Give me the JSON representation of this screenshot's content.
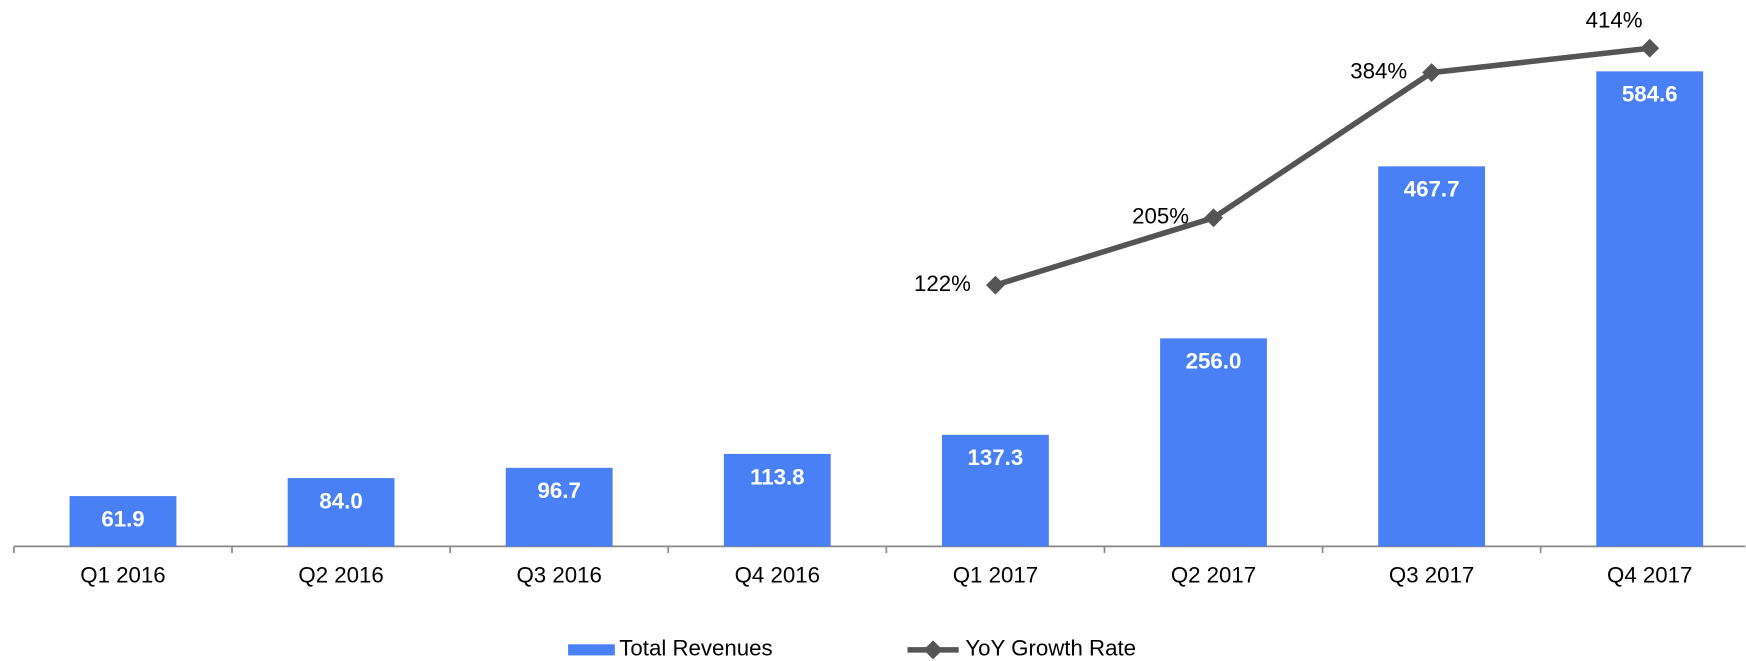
{
  "chart_data": {
    "type": "bar",
    "categories": [
      "Q1 2016",
      "Q2 2016",
      "Q3 2016",
      "Q4 2016",
      "Q1 2017",
      "Q2 2017",
      "Q3 2017",
      "Q4 2017"
    ],
    "series": [
      {
        "name": "Total Revenues",
        "type": "bar",
        "color": "#4a80f5",
        "values": [
          61.9,
          84.0,
          96.7,
          113.8,
          137.3,
          256.0,
          467.7,
          584.6
        ],
        "value_labels": [
          "61.9",
          "84.0",
          "96.7",
          "113.8",
          "137.3",
          "256.0",
          "467.7",
          "584.6"
        ]
      },
      {
        "name": "YoY Growth Rate",
        "type": "line",
        "axis": "y2",
        "color": "#555555",
        "values": [
          null,
          null,
          null,
          null,
          122,
          205,
          384,
          414
        ],
        "value_labels": [
          null,
          null,
          null,
          null,
          "122%",
          "205%",
          "384%",
          "414%"
        ]
      }
    ],
    "ylim": [
      0,
      645
    ],
    "y2lim": [
      -200,
      446
    ],
    "legend": "bottom"
  }
}
